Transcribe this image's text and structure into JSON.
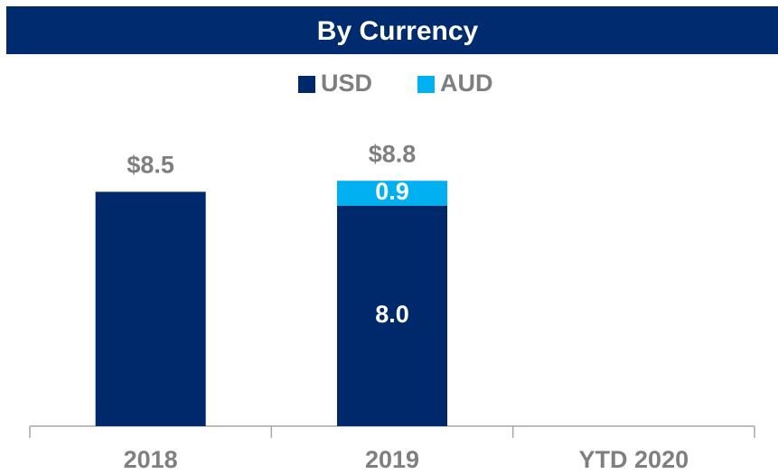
{
  "chart_data": {
    "type": "stacked-bar",
    "title": "By Currency",
    "categories": [
      "2018",
      "2019",
      "YTD 2020"
    ],
    "series": [
      {
        "name": "USD",
        "color": "#00296b",
        "values": [
          8.5,
          8.0,
          null
        ],
        "value_labels": [
          null,
          "8.0",
          null
        ]
      },
      {
        "name": "AUD",
        "color": "#00b0f0",
        "values": [
          null,
          0.9,
          null
        ],
        "value_labels": [
          null,
          "0.9",
          null
        ]
      }
    ],
    "totals": [
      8.5,
      8.8,
      null
    ],
    "totals_value_labels": [
      "$8.5",
      "$8.8",
      null
    ],
    "ylim": [
      0,
      11.2
    ]
  }
}
